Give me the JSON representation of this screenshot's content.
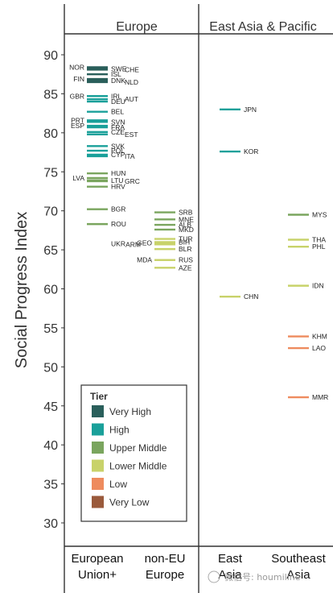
{
  "chart_data": {
    "type": "scatter",
    "ylabel": "Social Progress Index",
    "ylim": [
      25,
      92
    ],
    "yticks": [
      30,
      35,
      40,
      45,
      50,
      55,
      60,
      65,
      70,
      75,
      80,
      85,
      90
    ],
    "facets": [
      {
        "label": "Europe",
        "columns": [
          "European Union+",
          "non-EU Europe"
        ]
      },
      {
        "label": "East Asia & Pacific",
        "columns": [
          "East Asia",
          "Southeast Asia"
        ]
      }
    ],
    "legend": {
      "title": "Tier",
      "position": "bottom-left",
      "items": [
        {
          "label": "Very High",
          "color": "#2a5f5b"
        },
        {
          "label": "High",
          "color": "#1aa09a"
        },
        {
          "label": "Upper Middle",
          "color": "#7aa55e"
        },
        {
          "label": "Lower Middle",
          "color": "#c8d26a"
        },
        {
          "label": "Low",
          "color": "#ee8b5e"
        },
        {
          "label": "Very Low",
          "color": "#9a5a3c"
        }
      ]
    },
    "points": [
      {
        "code": "NOR",
        "column": 0,
        "y": 88.4,
        "tier": "Very High",
        "label_side": "left"
      },
      {
        "code": "SWE",
        "column": 0,
        "y": 88.2,
        "tier": "Very High",
        "label_side": "right"
      },
      {
        "code": "CHE",
        "column": 0,
        "y": 88.1,
        "tier": "Very High",
        "label_side": "right2"
      },
      {
        "code": "ISL",
        "column": 0,
        "y": 87.5,
        "tier": "Very High",
        "label_side": "right"
      },
      {
        "code": "FIN",
        "column": 0,
        "y": 86.9,
        "tier": "Very High",
        "label_side": "left"
      },
      {
        "code": "DNK",
        "column": 0,
        "y": 86.7,
        "tier": "Very High",
        "label_side": "right"
      },
      {
        "code": "NLD",
        "column": 0,
        "y": 86.5,
        "tier": "Very High",
        "label_side": "right2"
      },
      {
        "code": "GBR",
        "column": 0,
        "y": 84.7,
        "tier": "High",
        "label_side": "left"
      },
      {
        "code": "IRL",
        "column": 0,
        "y": 84.7,
        "tier": "High",
        "label_side": "right"
      },
      {
        "code": "AUT",
        "column": 0,
        "y": 84.3,
        "tier": "High",
        "label_side": "right2"
      },
      {
        "code": "DEU",
        "column": 0,
        "y": 84.0,
        "tier": "High",
        "label_side": "right"
      },
      {
        "code": "BEL",
        "column": 0,
        "y": 82.7,
        "tier": "High",
        "label_side": "right"
      },
      {
        "code": "PRT",
        "column": 0,
        "y": 81.6,
        "tier": "High",
        "label_side": "left"
      },
      {
        "code": "SVN",
        "column": 0,
        "y": 81.4,
        "tier": "High",
        "label_side": "right"
      },
      {
        "code": "ESP",
        "column": 0,
        "y": 80.9,
        "tier": "High",
        "label_side": "left"
      },
      {
        "code": "FRA",
        "column": 0,
        "y": 80.7,
        "tier": "High",
        "label_side": "right"
      },
      {
        "code": "CZE",
        "column": 0,
        "y": 80.1,
        "tier": "High",
        "label_side": "right"
      },
      {
        "code": "EST",
        "column": 0,
        "y": 79.8,
        "tier": "High",
        "label_side": "right2"
      },
      {
        "code": "SVK",
        "column": 0,
        "y": 78.3,
        "tier": "High",
        "label_side": "right"
      },
      {
        "code": "POL",
        "column": 0,
        "y": 77.7,
        "tier": "High",
        "label_side": "right"
      },
      {
        "code": "CYP",
        "column": 0,
        "y": 77.2,
        "tier": "High",
        "label_side": "right"
      },
      {
        "code": "ITA",
        "column": 0,
        "y": 77.0,
        "tier": "High",
        "label_side": "right2"
      },
      {
        "code": "HUN",
        "column": 0,
        "y": 74.8,
        "tier": "Upper Middle",
        "label_side": "right"
      },
      {
        "code": "LVA",
        "column": 0,
        "y": 74.2,
        "tier": "Upper Middle",
        "label_side": "left"
      },
      {
        "code": "LTU",
        "column": 0,
        "y": 73.9,
        "tier": "Upper Middle",
        "label_side": "right"
      },
      {
        "code": "GRC",
        "column": 0,
        "y": 73.8,
        "tier": "Upper Middle",
        "label_side": "right2"
      },
      {
        "code": "HRV",
        "column": 0,
        "y": 73.1,
        "tier": "Upper Middle",
        "label_side": "right"
      },
      {
        "code": "BGR",
        "column": 0,
        "y": 70.2,
        "tier": "Upper Middle",
        "label_side": "right"
      },
      {
        "code": "ROU",
        "column": 0,
        "y": 68.3,
        "tier": "Upper Middle",
        "label_side": "right"
      },
      {
        "code": "SRB",
        "column": 1,
        "y": 69.8,
        "tier": "Upper Middle",
        "label_side": "right"
      },
      {
        "code": "MNE",
        "column": 1,
        "y": 68.9,
        "tier": "Upper Middle",
        "label_side": "right"
      },
      {
        "code": "ALB",
        "column": 1,
        "y": 68.2,
        "tier": "Upper Middle",
        "label_side": "right"
      },
      {
        "code": "MKD",
        "column": 1,
        "y": 67.6,
        "tier": "Upper Middle",
        "label_side": "right"
      },
      {
        "code": "TUR",
        "column": 1,
        "y": 66.4,
        "tier": "Lower Middle",
        "label_side": "right"
      },
      {
        "code": "BIH",
        "column": 1,
        "y": 66.0,
        "tier": "Lower Middle",
        "label_side": "right"
      },
      {
        "code": "UKR",
        "column": 1,
        "y": 65.8,
        "tier": "Lower Middle",
        "label_side": "left3"
      },
      {
        "code": "ARM",
        "column": 1,
        "y": 65.7,
        "tier": "Lower Middle",
        "label_side": "left2"
      },
      {
        "code": "GEO",
        "column": 1,
        "y": 65.9,
        "tier": "Lower Middle",
        "label_side": "left"
      },
      {
        "code": "BLR",
        "column": 1,
        "y": 65.1,
        "tier": "Lower Middle",
        "label_side": "right"
      },
      {
        "code": "MDA",
        "column": 1,
        "y": 63.7,
        "tier": "Lower Middle",
        "label_side": "left"
      },
      {
        "code": "RUS",
        "column": 1,
        "y": 63.7,
        "tier": "Lower Middle",
        "label_side": "right"
      },
      {
        "code": "AZE",
        "column": 1,
        "y": 62.7,
        "tier": "Lower Middle",
        "label_side": "right"
      },
      {
        "code": "JPN",
        "column": 2,
        "y": 83.0,
        "tier": "High",
        "label_side": "right"
      },
      {
        "code": "KOR",
        "column": 2,
        "y": 77.6,
        "tier": "High",
        "label_side": "right"
      },
      {
        "code": "CHN",
        "column": 2,
        "y": 59.0,
        "tier": "Lower Middle",
        "label_side": "right"
      },
      {
        "code": "MYS",
        "column": 3,
        "y": 69.5,
        "tier": "Upper Middle",
        "label_side": "right"
      },
      {
        "code": "THA",
        "column": 3,
        "y": 66.3,
        "tier": "Lower Middle",
        "label_side": "right"
      },
      {
        "code": "PHL",
        "column": 3,
        "y": 65.4,
        "tier": "Lower Middle",
        "label_side": "right"
      },
      {
        "code": "IDN",
        "column": 3,
        "y": 60.4,
        "tier": "Lower Middle",
        "label_side": "right"
      },
      {
        "code": "KHM",
        "column": 3,
        "y": 53.9,
        "tier": "Low",
        "label_side": "right"
      },
      {
        "code": "LAO",
        "column": 3,
        "y": 52.4,
        "tier": "Low",
        "label_side": "right"
      },
      {
        "code": "MMR",
        "column": 3,
        "y": 46.1,
        "tier": "Low",
        "label_side": "right"
      }
    ]
  },
  "watermark": "微信号: houmiline"
}
